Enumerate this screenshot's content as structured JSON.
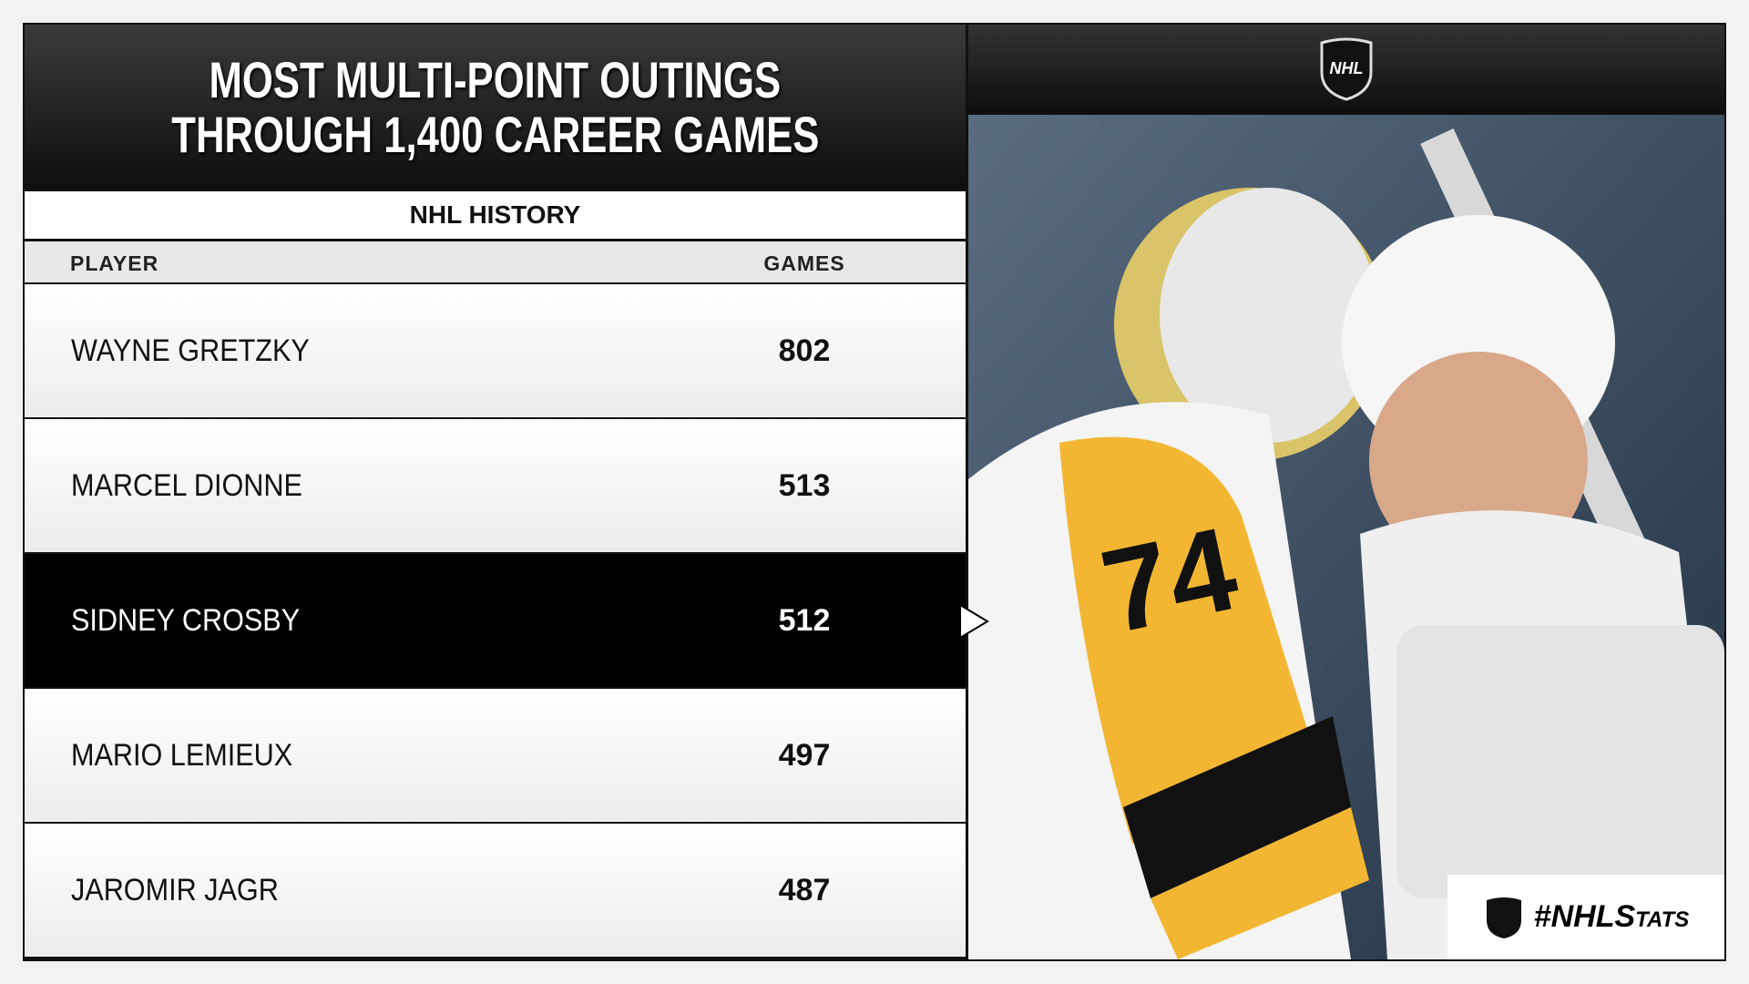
{
  "header": {
    "title": [
      "MOST MULTI-POINT OUTINGS",
      "THROUGH 1,400 CAREER GAMES"
    ],
    "subtitle": "NHL HISTORY"
  },
  "logo": "NHL",
  "table": {
    "columns": [
      "PLAYER",
      "GAMES"
    ],
    "rows": [
      [
        "WAYNE GRETZKY",
        802
      ],
      [
        "MARCEL DIONNE",
        513
      ],
      [
        "SIDNEY CROSBY",
        512
      ],
      [
        "MARIO LEMIEUX",
        497
      ],
      [
        "JAROMIR JAGR",
        487
      ]
    ],
    "highlight_row": 2
  },
  "hashtag": "#NHLStats"
}
